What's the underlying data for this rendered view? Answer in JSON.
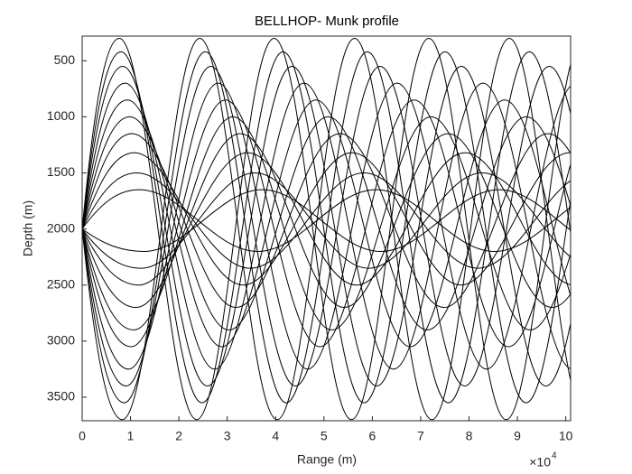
{
  "chart_data": {
    "type": "ray",
    "title": "BELLHOP- Munk profile",
    "x_label": "Range (m)",
    "y_label": "Depth (m)",
    "x_scale_base": "×10",
    "x_scale_exponent": "4",
    "xlim": [
      0,
      101000
    ],
    "ylim": [
      280,
      3710
    ],
    "y_reversed": true,
    "color": "#000000",
    "xticks": [
      {
        "value": 0,
        "label": "0"
      },
      {
        "value": 10000,
        "label": "1"
      },
      {
        "value": 20000,
        "label": "2"
      },
      {
        "value": 30000,
        "label": "3"
      },
      {
        "value": 40000,
        "label": "4"
      },
      {
        "value": 50000,
        "label": "5"
      },
      {
        "value": 60000,
        "label": "6"
      },
      {
        "value": 70000,
        "label": "7"
      },
      {
        "value": 80000,
        "label": "8"
      },
      {
        "value": 90000,
        "label": "9"
      },
      {
        "value": 100000,
        "label": "10"
      }
    ],
    "yticks": [
      500,
      1000,
      1500,
      2000,
      2500,
      3000,
      3500
    ],
    "series": [
      {
        "x": [
          0,
          7680,
          23680,
          39680,
          55680,
          71680,
          87680,
          103680
        ],
        "values": [
          2000,
          300,
          3700,
          300,
          3700,
          300,
          3700,
          300
        ]
      },
      {
        "x": [
          0,
          8320,
          24320,
          40320,
          56320,
          72320,
          88320,
          104320
        ],
        "values": [
          2000,
          3700,
          300,
          3700,
          300,
          3700,
          300,
          3700
        ]
      },
      {
        "x": [
          0,
          8040,
          24790,
          41540,
          58290,
          75040,
          91790,
          108540
        ],
        "values": [
          2000,
          420,
          3550,
          420,
          3550,
          420,
          3550,
          420
        ]
      },
      {
        "x": [
          0,
          8710,
          25460,
          42210,
          58960,
          75710,
          92460,
          109210
        ],
        "values": [
          2000,
          3550,
          420,
          3550,
          420,
          3550,
          420,
          3550
        ]
      },
      {
        "x": [
          0,
          8400,
          25900,
          43400,
          60900,
          78400,
          95900,
          113400
        ],
        "values": [
          2000,
          550,
          3400,
          550,
          3400,
          550,
          3400,
          550
        ]
      },
      {
        "x": [
          0,
          9100,
          26600,
          44100,
          61600,
          79100,
          96600,
          114100
        ],
        "values": [
          2000,
          3400,
          550,
          3400,
          550,
          3400,
          550,
          3400
        ]
      },
      {
        "x": [
          0,
          8880,
          27380,
          45880,
          64380,
          82880,
          101380
        ],
        "values": [
          2000,
          700,
          3250,
          700,
          3250,
          700,
          3250
        ]
      },
      {
        "x": [
          0,
          9620,
          28120,
          46620,
          65120,
          83620,
          102120
        ],
        "values": [
          2000,
          3250,
          700,
          3250,
          700,
          3250,
          700
        ]
      },
      {
        "x": [
          0,
          9360,
          28860,
          48360,
          67860,
          87360,
          106860
        ],
        "values": [
          2000,
          850,
          3050,
          850,
          3050,
          850,
          3050
        ]
      },
      {
        "x": [
          0,
          10140,
          29640,
          49140,
          68640,
          88140,
          107640
        ],
        "values": [
          2000,
          3050,
          850,
          3050,
          850,
          3050,
          850
        ]
      },
      {
        "x": [
          0,
          9840,
          30340,
          50840,
          71340,
          91840,
          112340
        ],
        "values": [
          2000,
          1000,
          2900,
          1000,
          2900,
          1000,
          2900
        ]
      },
      {
        "x": [
          0,
          10660,
          31160,
          51660,
          72160,
          92660,
          113160
        ],
        "values": [
          2000,
          2900,
          1000,
          2900,
          1000,
          2900,
          1000
        ]
      },
      {
        "x": [
          0,
          10320,
          31820,
          53320,
          74820,
          96320,
          117820
        ],
        "values": [
          2000,
          1150,
          2700,
          1150,
          2700,
          1150,
          2700
        ]
      },
      {
        "x": [
          0,
          11180,
          32680,
          54180,
          75680,
          97180,
          118680
        ],
        "values": [
          2000,
          2700,
          1150,
          2700,
          1150,
          2700,
          1150
        ]
      },
      {
        "x": [
          0,
          10800,
          33300,
          55800,
          78300,
          100800,
          123300
        ],
        "values": [
          2000,
          1320,
          2500,
          1320,
          2500,
          1320,
          2500
        ]
      },
      {
        "x": [
          0,
          11700,
          34200,
          56700,
          79200,
          101700
        ],
        "values": [
          2000,
          2500,
          1320,
          2500,
          1320,
          2500
        ]
      },
      {
        "x": [
          0,
          11280,
          34780,
          58280,
          81780,
          105280
        ],
        "values": [
          2000,
          1500,
          2350,
          1500,
          2350,
          1500
        ]
      },
      {
        "x": [
          0,
          12220,
          35720,
          59220,
          82720,
          106220
        ],
        "values": [
          2000,
          2350,
          1500,
          2350,
          1500,
          2350
        ]
      },
      {
        "x": [
          0,
          11760,
          36260,
          60760,
          85260,
          109760
        ],
        "values": [
          2000,
          1650,
          2200,
          1650,
          2200,
          1650
        ]
      },
      {
        "x": [
          0,
          12740,
          37240,
          61740,
          86240,
          110740
        ],
        "values": [
          2000,
          2200,
          1650,
          2200,
          1650,
          2200
        ]
      }
    ]
  }
}
